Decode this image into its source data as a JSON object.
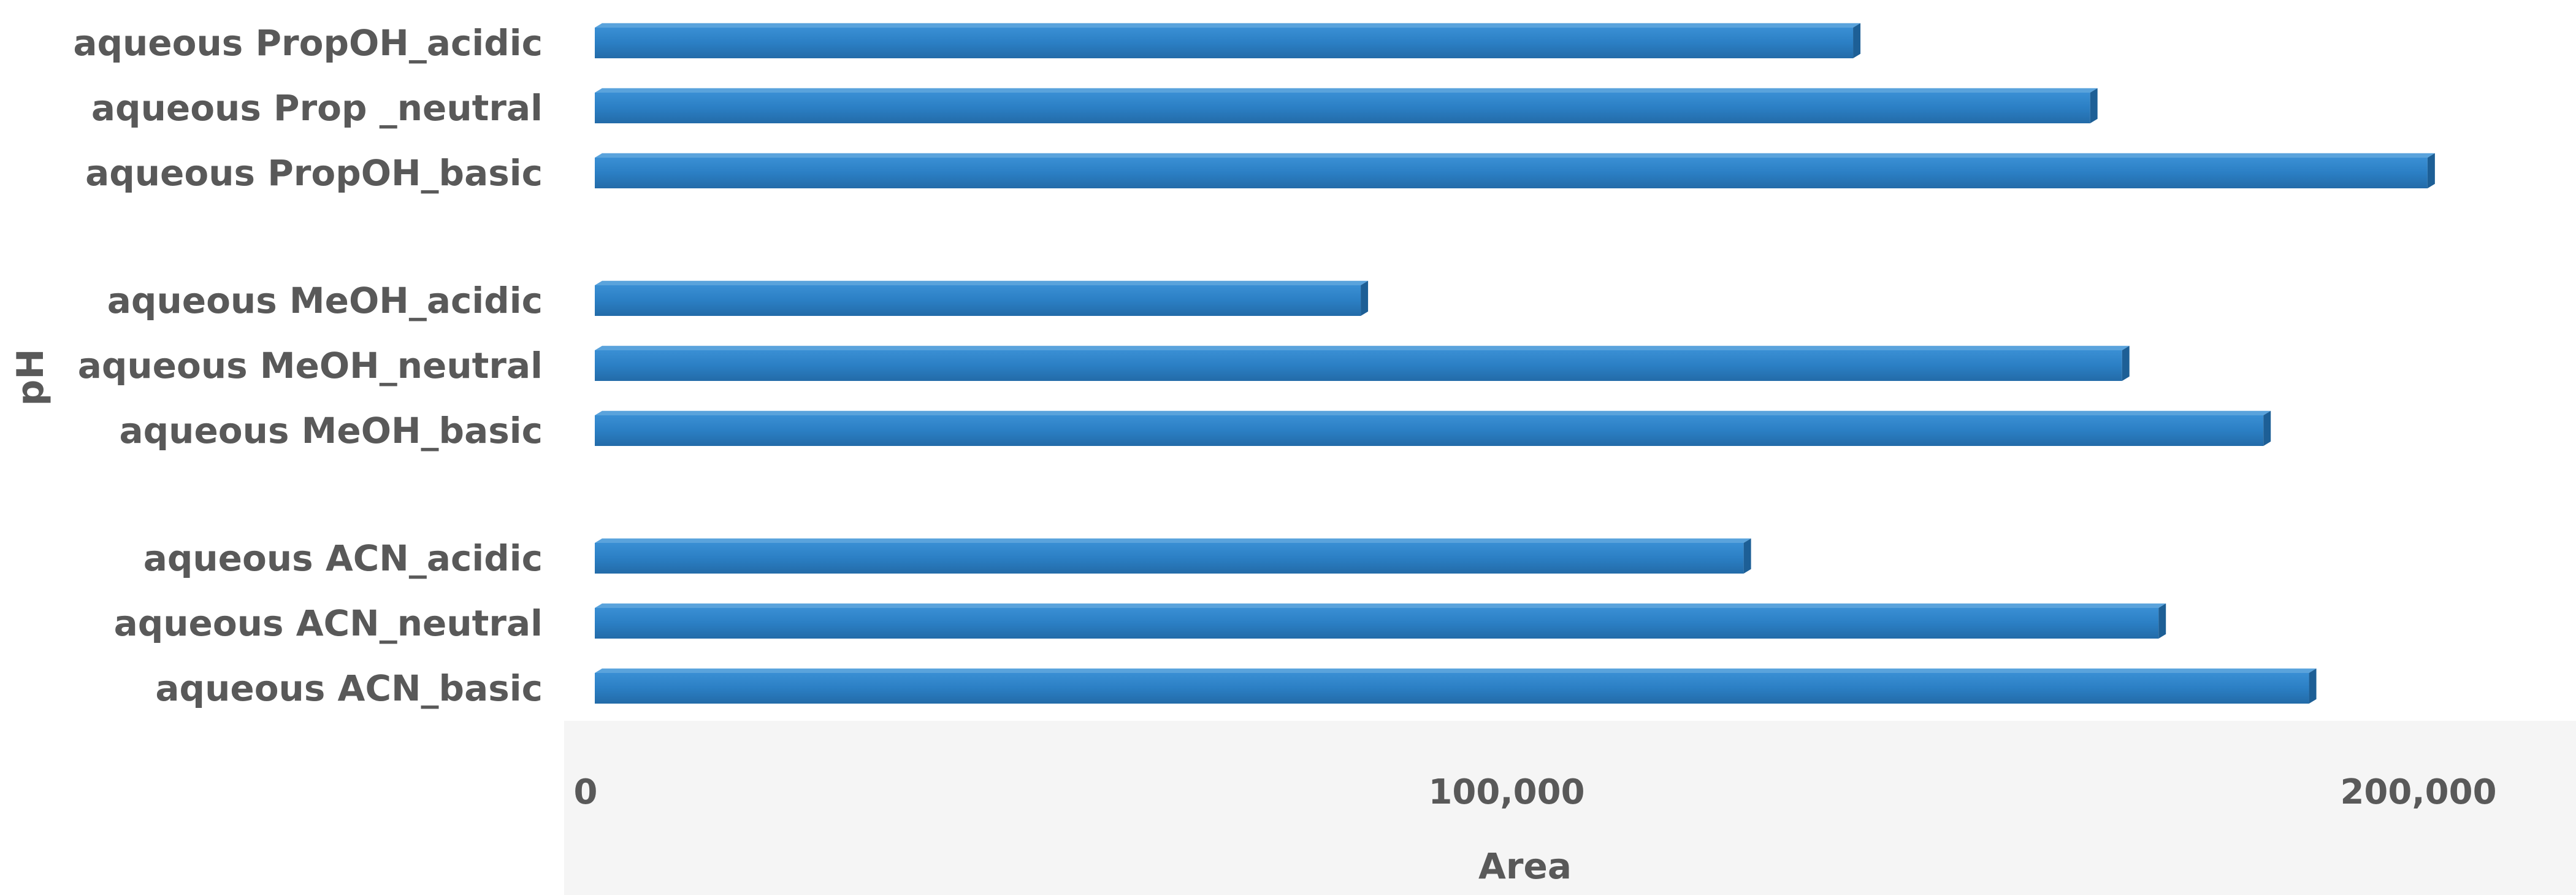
{
  "chart_data": {
    "type": "bar",
    "orientation": "horizontal",
    "style": "3d",
    "title": "",
    "xlabel": "Area",
    "ylabel": "pH",
    "categories": [
      "aqueous PropOH_acidic",
      "aqueous Prop _neutral",
      "aqueous PropOH_basic",
      "aqueous MeOH_acidic",
      "aqueous MeOH_neutral",
      "aqueous MeOH_basic",
      "aqueous ACN_acidic",
      "aqueous ACN_neutral",
      "aqueous ACN_basic"
    ],
    "groups": [
      [
        "aqueous PropOH_acidic",
        "aqueous Prop _neutral",
        "aqueous PropOH_basic"
      ],
      [
        "aqueous MeOH_acidic",
        "aqueous MeOH_neutral",
        "aqueous MeOH_basic"
      ],
      [
        "aqueous ACN_acidic",
        "aqueous ACN_neutral",
        "aqueous ACN_basic"
      ]
    ],
    "values": [
      138000,
      164000,
      201000,
      84000,
      167500,
      183000,
      126000,
      171500,
      188000
    ],
    "xlim": [
      0,
      210000
    ],
    "xticks": [
      0,
      100000,
      200000
    ],
    "xtick_labels": [
      "0",
      "100,000",
      "200,000"
    ],
    "grid": false,
    "legend": "none",
    "bar_color": "#2b7fc4",
    "bar_top_color": "#5aa3dc",
    "bar_side_color": "#1d5f96",
    "floor_color": "#f5f5f5",
    "label_color": "#595959"
  }
}
